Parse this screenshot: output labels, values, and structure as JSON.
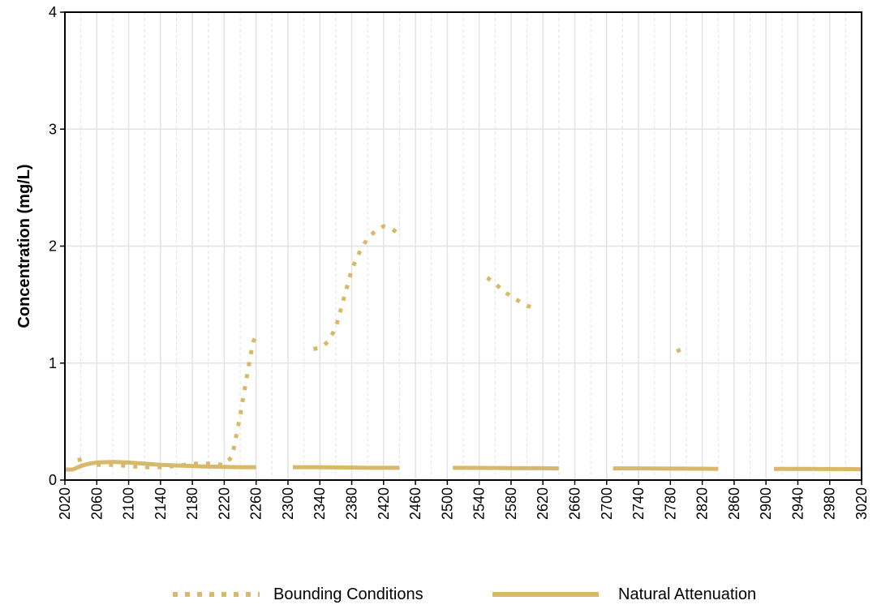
{
  "chart_data": {
    "type": "line",
    "title": "",
    "xlabel": "",
    "ylabel": "Concentration (mg/L)",
    "xlim": [
      2020,
      3020
    ],
    "ylim": [
      0,
      4
    ],
    "x_ticks": [
      2020,
      2060,
      2100,
      2140,
      2180,
      2220,
      2260,
      2300,
      2340,
      2380,
      2420,
      2460,
      2500,
      2540,
      2580,
      2620,
      2660,
      2700,
      2740,
      2780,
      2820,
      2860,
      2900,
      2940,
      2980,
      3020
    ],
    "y_ticks": [
      0,
      1,
      2,
      3,
      4
    ],
    "grid": true,
    "legend_position": "bottom",
    "colors": {
      "series": "#d8b86a",
      "grid": "#e3e3e3",
      "axis": "#000000"
    },
    "series": [
      {
        "name": "Bounding Conditions",
        "style": "dotted",
        "segments": [
          [
            [
              2036,
              0.17
            ],
            [
              2042,
              0.18
            ]
          ],
          [
            [
              2060,
              0.13
            ],
            [
              2080,
              0.13
            ],
            [
              2100,
              0.12
            ],
            [
              2120,
              0.11
            ],
            [
              2140,
              0.11
            ],
            [
              2160,
              0.12
            ],
            [
              2180,
              0.14
            ],
            [
              2200,
              0.14
            ],
            [
              2220,
              0.13
            ],
            [
              2230,
              0.2
            ],
            [
              2240,
              0.55
            ],
            [
              2250,
              0.95
            ],
            [
              2256,
              1.18
            ],
            [
              2260,
              1.23
            ]
          ],
          [
            [
              2332,
              1.12
            ],
            [
              2340,
              1.13
            ],
            [
              2350,
              1.18
            ],
            [
              2360,
              1.3
            ],
            [
              2370,
              1.55
            ],
            [
              2380,
              1.8
            ],
            [
              2390,
              1.95
            ],
            [
              2400,
              2.07
            ],
            [
              2410,
              2.13
            ],
            [
              2420,
              2.17
            ],
            [
              2430,
              2.15
            ],
            [
              2440,
              2.1
            ]
          ],
          [
            [
              2550,
              1.73
            ],
            [
              2560,
              1.68
            ],
            [
              2570,
              1.62
            ],
            [
              2580,
              1.57
            ],
            [
              2590,
              1.53
            ],
            [
              2600,
              1.49
            ],
            [
              2610,
              1.47
            ]
          ],
          [
            [
              2788,
              1.1
            ],
            [
              2794,
              1.12
            ]
          ]
        ]
      },
      {
        "name": "Natural Attenuation",
        "style": "solid",
        "segments": [
          [
            [
              2020,
              0.09
            ],
            [
              2030,
              0.09
            ],
            [
              2040,
              0.12
            ],
            [
              2050,
              0.14
            ],
            [
              2060,
              0.15
            ],
            [
              2080,
              0.155
            ],
            [
              2100,
              0.15
            ],
            [
              2120,
              0.14
            ],
            [
              2140,
              0.13
            ],
            [
              2160,
              0.125
            ],
            [
              2180,
              0.12
            ],
            [
              2200,
              0.115
            ],
            [
              2220,
              0.112
            ],
            [
              2240,
              0.11
            ],
            [
              2260,
              0.11
            ]
          ],
          [
            [
              2306,
              0.11
            ],
            [
              2330,
              0.11
            ],
            [
              2360,
              0.108
            ],
            [
              2400,
              0.105
            ],
            [
              2440,
              0.105
            ]
          ],
          [
            [
              2507,
              0.105
            ],
            [
              2540,
              0.104
            ],
            [
              2580,
              0.102
            ],
            [
              2620,
              0.101
            ],
            [
              2640,
              0.1
            ]
          ],
          [
            [
              2708,
              0.1
            ],
            [
              2740,
              0.1
            ],
            [
              2780,
              0.098
            ],
            [
              2820,
              0.097
            ],
            [
              2840,
              0.096
            ]
          ],
          [
            [
              2910,
              0.095
            ],
            [
              2950,
              0.095
            ],
            [
              2990,
              0.094
            ],
            [
              3020,
              0.093
            ]
          ]
        ]
      }
    ]
  }
}
